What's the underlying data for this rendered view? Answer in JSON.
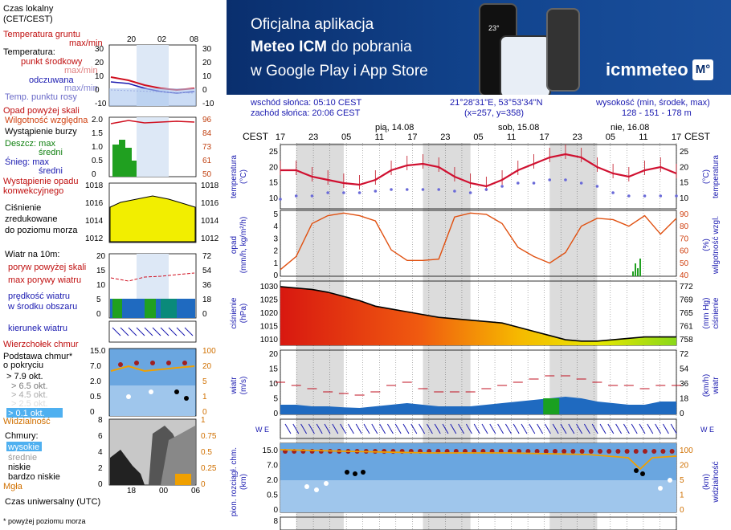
{
  "legend": {
    "time_zone": "Czas lokalny\n(CET/CEST)",
    "top_ticks": [
      "20",
      "02",
      "08"
    ],
    "ground_temp": "Temperatura gruntu",
    "ground_maxmin": "max/min",
    "temperature": "Temperatura:",
    "mid_point": "punkt środkowy",
    "maxmin": "max/min",
    "feels_like": "odczuwana",
    "feels_maxmin": "max/min",
    "dew_point": "Temp. punktu rosy",
    "temp_ticks": [
      "30",
      "20",
      "10",
      "0",
      "-10"
    ],
    "precip_above": "Opad powyżej skali",
    "rel_humidity": "Wilgotność względna",
    "storm": "Wystąpienie burzy",
    "rain_max": "Deszcz: max",
    "rain_avg": "średni",
    "snow_max": "Śnieg: max",
    "snow_avg": "średni",
    "convective": "Wystąpienie opadu\nkonwekcyjnego",
    "precip_ticks": [
      "2.0",
      "1.5",
      "1.0",
      "0.5",
      "0"
    ],
    "hum_ticks": [
      "96",
      "84",
      "73",
      "61",
      "50"
    ],
    "pressure": "Ciśnienie\nzredukowane\ndo poziomu morza",
    "pressure_ticks": [
      "1018",
      "1016",
      "1014",
      "1012"
    ],
    "wind_level": "Wiatr na 10m:",
    "gust_above": "poryw powyżej skali",
    "max_gust": "max porywy wiatru",
    "wind_speed": "prędkość wiatru\nw środku obszaru",
    "wind_ticks": [
      "20",
      "15",
      "10",
      "5",
      "0"
    ],
    "wind_ticks_r": [
      "72",
      "54",
      "36",
      "18",
      "0"
    ],
    "wind_dir": "kierunek wiatru",
    "cloud_top": "Wierzchołek chmur",
    "cloud_base": "Podstawa chmur*\no pokryciu",
    "okt79": "> 7.9 okt.",
    "okt65": "> 6.5 okt.",
    "okt45": "> 4.5 okt.",
    "okt25": "> 2.5 okt.",
    "okt01": "> 0.1 okt.",
    "base_ticks": [
      "15.0",
      "7.0",
      "2.0",
      "0.5",
      "0"
    ],
    "base_ticks_r": [
      "100",
      "20",
      "5",
      "1",
      "0"
    ],
    "visibility": "Widzialność",
    "clouds": "Chmury:",
    "high": "wysokie",
    "mid": "średnie",
    "low": "niskie",
    "very_low": "bardzo niskie",
    "fog": "Mgła",
    "cloud_ticks": [
      "8",
      "6",
      "4",
      "2",
      "0"
    ],
    "cloud_ticks_r": [
      "1",
      "0.75",
      "0.5",
      "0.25",
      "0"
    ],
    "bottom_ticks": [
      "18",
      "00",
      "06"
    ],
    "utc": "Czas uniwersalny (UTC)",
    "footnote": "* powyżej poziomu morza"
  },
  "banner": {
    "line1": "Oficjalna aplikacja",
    "line2a": "Meteo ICM",
    "line2b": " do pobrania",
    "line3": "w Google Play i App Store",
    "logo": "icmmeteo",
    "logo_badge": "M°",
    "phone_temp": "23°"
  },
  "info": {
    "sunrise": "wschód słońca: 05:10 CEST",
    "sunset": "zachód słońca: 20:06 CEST",
    "coords": "21°28'31\"E, 53°53'34\"N",
    "grid": "(x=257,  y=358)",
    "height_label": "wysokość (min, środek, max)",
    "height_values": "128 - 151 - 178 m"
  },
  "main": {
    "tz": "CEST",
    "days": [
      "pią, 14.08",
      "sob, 15.08",
      "nie, 16.08"
    ],
    "hours": [
      "17",
      "23",
      "05",
      "11",
      "17",
      "23",
      "05",
      "11",
      "17",
      "23",
      "05",
      "11",
      "17"
    ],
    "temp_label": "temperatura\n(°C)",
    "temp_ticks": [
      "25",
      "20",
      "15",
      "10"
    ],
    "precip_label": "opad\n(mm/h, kg/m²/h)",
    "precip_ticks": [
      "5",
      "4",
      "3",
      "2",
      "1",
      "0"
    ],
    "hum_label": "(%)\nwilgotność wzgl.",
    "hum_ticks": [
      "90",
      "80",
      "70",
      "60",
      "50",
      "40"
    ],
    "press_label": "ciśnienie\n(hPa)",
    "press_ticks": [
      "1030",
      "1025",
      "1020",
      "1015",
      "1010"
    ],
    "press_r_label": "(mm Hg)\nciśnienie",
    "press_r_ticks": [
      "772",
      "769",
      "765",
      "761",
      "758"
    ],
    "wind_label": "wiatr\n(m/s)",
    "wind_ticks": [
      "20",
      "15",
      "10",
      "5",
      "0"
    ],
    "wind_r_label": "(km/h)\nwiatr",
    "wind_r_ticks": [
      "72",
      "54",
      "36",
      "18",
      "0"
    ],
    "dir_label": "W  E",
    "vis_label": "pion. rozciągł. chm.\n(km)",
    "vis_ticks": [
      "15.0",
      "7.0",
      "2.0",
      "0.5",
      "0"
    ],
    "vis_r_label": "(km)\nwidzialność",
    "vis_r_ticks": [
      "100",
      "20",
      "5",
      "1",
      "0"
    ],
    "last_tick": "8"
  },
  "chart_data": {
    "type": "line",
    "x_hours_cest": [
      "14.08 17",
      "14.08 20",
      "14.08 23",
      "15.08 02",
      "15.08 05",
      "15.08 08",
      "15.08 11",
      "15.08 14",
      "15.08 17",
      "15.08 20",
      "15.08 23",
      "16.08 02",
      "16.08 05",
      "16.08 08",
      "16.08 11",
      "16.08 14",
      "16.08 17",
      "16.08 20",
      "16.08 23",
      "17.08 02",
      "17.08 05",
      "17.08 08",
      "17.08 11",
      "17.08 14",
      "17.08 17",
      "17.08 20"
    ],
    "series": [
      {
        "name": "temperatura",
        "values": [
          20,
          20,
          18,
          17,
          16,
          15.5,
          17,
          20,
          21.5,
          22,
          21,
          18,
          16,
          15,
          17,
          20,
          22,
          24,
          25,
          24,
          21,
          19,
          18,
          20,
          21,
          19
        ]
      },
      {
        "name": "punkt rosy",
        "values": [
          11,
          12,
          12,
          13,
          13,
          13,
          13.5,
          14,
          14,
          14,
          14,
          13.5,
          13,
          14,
          15,
          16,
          16,
          17,
          17,
          16,
          15,
          13,
          12,
          12,
          12,
          12
        ]
      },
      {
        "name": "wilgotność",
        "values": [
          45,
          55,
          80,
          86,
          88,
          86,
          82,
          60,
          52,
          52,
          53,
          85,
          88,
          87,
          80,
          62,
          55,
          50,
          58,
          78,
          84,
          83,
          78,
          86,
          72,
          84
        ]
      },
      {
        "name": "ciśnienie",
        "values": [
          1029,
          1028.5,
          1028,
          1027,
          1025.5,
          1024,
          1022,
          1021,
          1020,
          1019,
          1018,
          1017.5,
          1017,
          1016.5,
          1016,
          1014.5,
          1013,
          1011.5,
          1010,
          1009.5,
          1009.5,
          1010,
          1010.5,
          1011,
          1011,
          1011
        ]
      },
      {
        "name": "wiatr",
        "values": [
          3,
          3,
          2.5,
          2.5,
          2.2,
          2,
          2.5,
          3,
          3.5,
          3,
          2.5,
          2.5,
          2.5,
          3,
          3.5,
          4,
          4.5,
          5,
          5.5,
          5,
          4,
          3.5,
          3,
          3,
          4,
          4
        ]
      },
      {
        "name": "porywy",
        "values": [
          10,
          9,
          8,
          7,
          6.5,
          6,
          7,
          9,
          10,
          8,
          7,
          7,
          7,
          8,
          9,
          10,
          11,
          12,
          12,
          11,
          10,
          9,
          9,
          8,
          9,
          9
        ]
      }
    ],
    "ylim_temp": [
      8,
      28
    ],
    "ylim_pressure": [
      1008,
      1031
    ],
    "ylim_wind": [
      0,
      20
    ]
  }
}
